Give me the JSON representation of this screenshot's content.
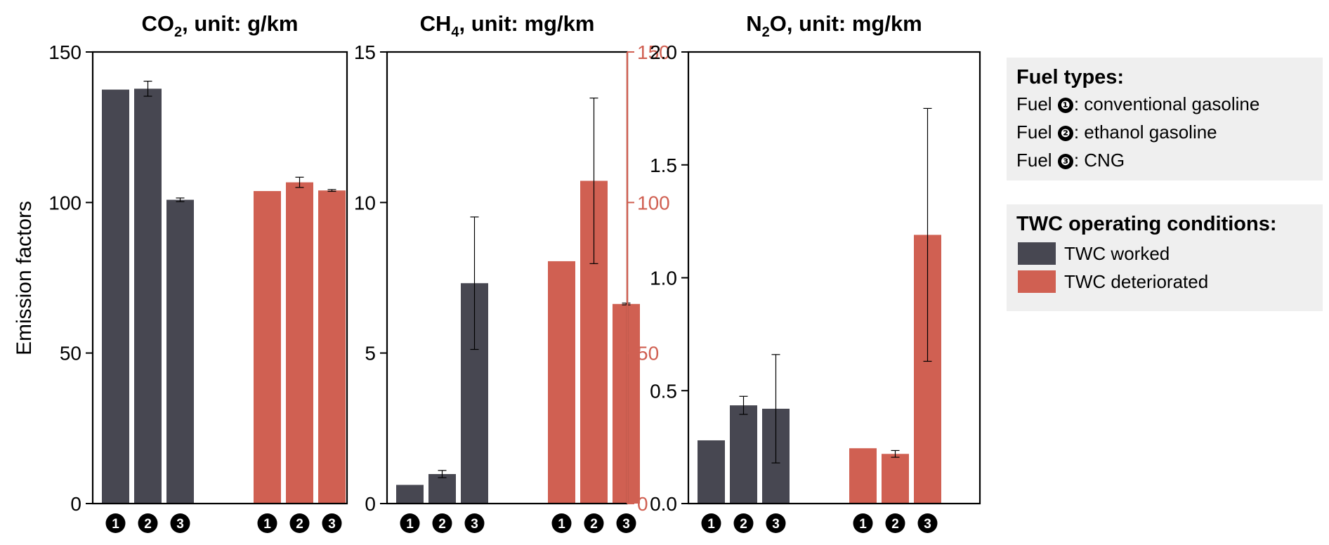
{
  "colors": {
    "worked": "#474751",
    "deteriorated": "#d06052",
    "axis": "#000000",
    "right_axis": "#d06052",
    "legend_bg": "#efefef"
  },
  "ylabel": "Emission factors",
  "fuel_markers": [
    "❶",
    "❷",
    "❸"
  ],
  "chart_data": [
    {
      "type": "bar",
      "title_main": "CO",
      "title_sub": "2",
      "title_rest": ", unit: g/km",
      "groups": [
        "TWC worked",
        "TWC deteriorated"
      ],
      "categories": [
        "❶",
        "❷",
        "❸"
      ],
      "ylim": [
        0,
        150
      ],
      "yticks": [
        0,
        50,
        100,
        150
      ],
      "ytick_labels": [
        "0",
        "50",
        "100",
        "150"
      ],
      "series": [
        {
          "name": "TWC worked",
          "values": [
            137.5,
            137.8,
            100.9
          ],
          "err": [
            0,
            2.5,
            0.6
          ]
        },
        {
          "name": "TWC deteriorated",
          "values": [
            103.8,
            106.7,
            104.0
          ],
          "err": [
            0,
            1.7,
            0.3
          ]
        }
      ]
    },
    {
      "type": "bar",
      "title_main": "CH",
      "title_sub": "4",
      "title_rest": ", unit: mg/km",
      "groups": [
        "TWC worked",
        "TWC deteriorated"
      ],
      "categories": [
        "❶",
        "❷",
        "❸"
      ],
      "ylim": [
        0,
        15
      ],
      "yticks": [
        0,
        5,
        10,
        15
      ],
      "ytick_labels": [
        "0",
        "5",
        "10",
        "15"
      ],
      "ylim_right": [
        0,
        150
      ],
      "yticks_right": [
        0,
        50,
        100,
        150
      ],
      "ytick_labels_right": [
        "0",
        "50",
        "100",
        "150"
      ],
      "series": [
        {
          "name": "TWC worked",
          "axis": "left",
          "values": [
            0.62,
            0.98,
            7.32
          ],
          "err": [
            0,
            0.12,
            2.2
          ]
        },
        {
          "name": "TWC deteriorated",
          "axis": "right",
          "values": [
            80.5,
            107.2,
            66.3
          ],
          "err": [
            0,
            27.5,
            0.3
          ]
        }
      ]
    },
    {
      "type": "bar",
      "title_main": "N",
      "title_sub": "2",
      "title_rest": "O, unit: mg/km",
      "groups": [
        "TWC worked",
        "TWC deteriorated"
      ],
      "categories": [
        "❶",
        "❷",
        "❸"
      ],
      "ylim": [
        0,
        2.0
      ],
      "yticks": [
        0,
        0.5,
        1.0,
        1.5,
        2.0
      ],
      "ytick_labels": [
        "0.0",
        "0.5",
        "1.0",
        "1.5",
        "2.0"
      ],
      "series": [
        {
          "name": "TWC worked",
          "values": [
            0.28,
            0.435,
            0.42
          ],
          "err": [
            0,
            0.04,
            0.24
          ]
        },
        {
          "name": "TWC deteriorated",
          "values": [
            0.245,
            0.22,
            1.19
          ],
          "err": [
            0,
            0.015,
            0.56
          ]
        }
      ]
    }
  ],
  "legend_fuel": {
    "title": "Fuel types:",
    "items": [
      {
        "prefix": "Fuel ",
        "marker": "❶",
        "text": ": conventional gasoline"
      },
      {
        "prefix": "Fuel ",
        "marker": "❷",
        "text": ": ethanol gasoline"
      },
      {
        "prefix": "Fuel ",
        "marker": "❸",
        "text": ": CNG"
      }
    ]
  },
  "legend_twc": {
    "title": "TWC operating conditions:",
    "items": [
      "TWC worked",
      "TWC deteriorated"
    ]
  }
}
